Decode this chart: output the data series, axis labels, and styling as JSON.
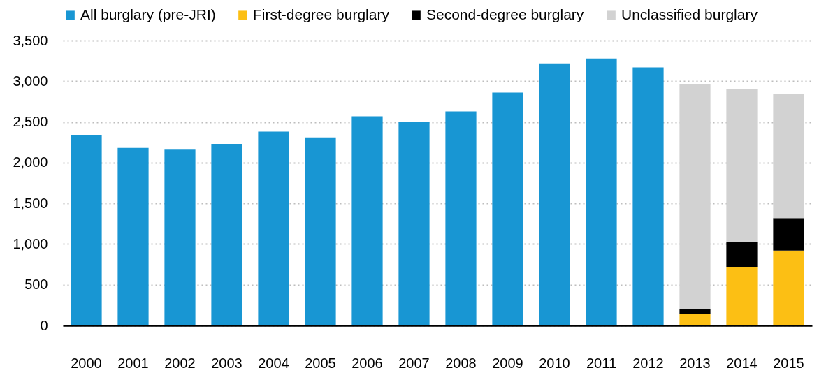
{
  "chart_data": {
    "type": "bar",
    "stacked": true,
    "categories": [
      "2000",
      "2001",
      "2002",
      "2003",
      "2004",
      "2005",
      "2006",
      "2007",
      "2008",
      "2009",
      "2010",
      "2011",
      "2012",
      "2013",
      "2014",
      "2015"
    ],
    "series": [
      {
        "name": "All burglary (pre-JRI)",
        "color": "#1896d3",
        "values": [
          2340,
          2180,
          2160,
          2230,
          2380,
          2310,
          2570,
          2500,
          2630,
          2860,
          3220,
          3280,
          3170,
          null,
          null,
          null
        ]
      },
      {
        "name": "First-degree burglary",
        "color": "#fcbf14",
        "values": [
          null,
          null,
          null,
          null,
          null,
          null,
          null,
          null,
          null,
          null,
          null,
          null,
          null,
          140,
          720,
          920
        ]
      },
      {
        "name": "Second-degree burglary",
        "color": "#000000",
        "values": [
          null,
          null,
          null,
          null,
          null,
          null,
          null,
          null,
          null,
          null,
          null,
          null,
          null,
          60,
          300,
          400
        ]
      },
      {
        "name": "Unclassified burglary",
        "color": "#d2d2d2",
        "values": [
          null,
          null,
          null,
          null,
          null,
          null,
          null,
          null,
          null,
          null,
          null,
          null,
          null,
          2760,
          1880,
          1520
        ]
      }
    ],
    "ylim": [
      0,
      3500
    ],
    "yticks": [
      0,
      500,
      {
        "value": 1000,
        "label": "1,000"
      },
      {
        "value": 1500,
        "label": "1,500"
      },
      {
        "value": 2000,
        "label": "2,000"
      },
      {
        "value": 2500,
        "label": "2,500"
      },
      {
        "value": 3000,
        "label": "3,000"
      },
      {
        "value": 3500,
        "label": "3,500"
      }
    ],
    "grid": "y",
    "legend": "top"
  }
}
